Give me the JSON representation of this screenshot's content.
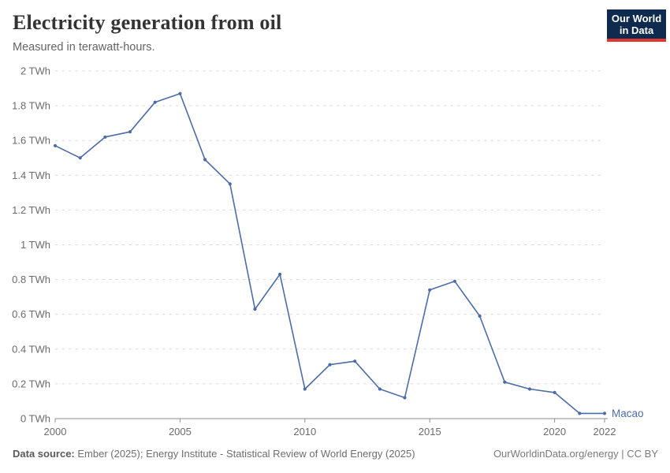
{
  "header": {
    "title": "Electricity generation from oil",
    "subtitle": "Measured in terawatt-hours."
  },
  "logo": {
    "line1": "Our World",
    "line2": "in Data",
    "bg_color": "#0e2a4e",
    "accent_color": "#e0362d"
  },
  "chart_data": {
    "type": "line",
    "title": "Electricity generation from oil",
    "subtitle": "Measured in terawatt-hours.",
    "unit": "TWh",
    "x": [
      2000,
      2001,
      2002,
      2003,
      2004,
      2005,
      2006,
      2007,
      2008,
      2009,
      2010,
      2011,
      2012,
      2013,
      2014,
      2015,
      2016,
      2017,
      2018,
      2019,
      2020,
      2021,
      2022
    ],
    "series": [
      {
        "name": "Macao",
        "color": "#4c6ca8",
        "values": [
          1.57,
          1.5,
          1.62,
          1.65,
          1.82,
          1.87,
          1.49,
          1.35,
          0.63,
          0.83,
          0.17,
          0.31,
          0.33,
          0.17,
          0.12,
          0.74,
          0.79,
          0.59,
          0.21,
          0.17,
          0.15,
          0.03,
          0.03
        ]
      }
    ],
    "xlim": [
      2000,
      2022
    ],
    "ylim": [
      0,
      2
    ],
    "xticks": [
      2000,
      2005,
      2010,
      2015,
      2020,
      2022
    ],
    "yticks": [
      0,
      0.2,
      0.4,
      0.6,
      0.8,
      1,
      1.2,
      1.4,
      1.6,
      1.8,
      2
    ],
    "ytick_labels": [
      "0 TWh",
      "0.2 TWh",
      "0.4 TWh",
      "0.6 TWh",
      "0.8 TWh",
      "1 TWh",
      "1.2 TWh",
      "1.4 TWh",
      "1.6 TWh",
      "1.8 TWh",
      "2 TWh"
    ],
    "grid": "horizontal-dashed",
    "grid_color": "#dcdcdc",
    "axis_color": "#8d8d8d",
    "tick_label_color": "#6b6b6b",
    "legend_position": "end-of-line-label"
  },
  "footer": {
    "datasource_label": "Data source:",
    "datasource_text": " Ember (2025); Energy Institute - Statistical Review of World Energy (2025)",
    "link_text": "OurWorldinData.org/energy | CC BY"
  }
}
